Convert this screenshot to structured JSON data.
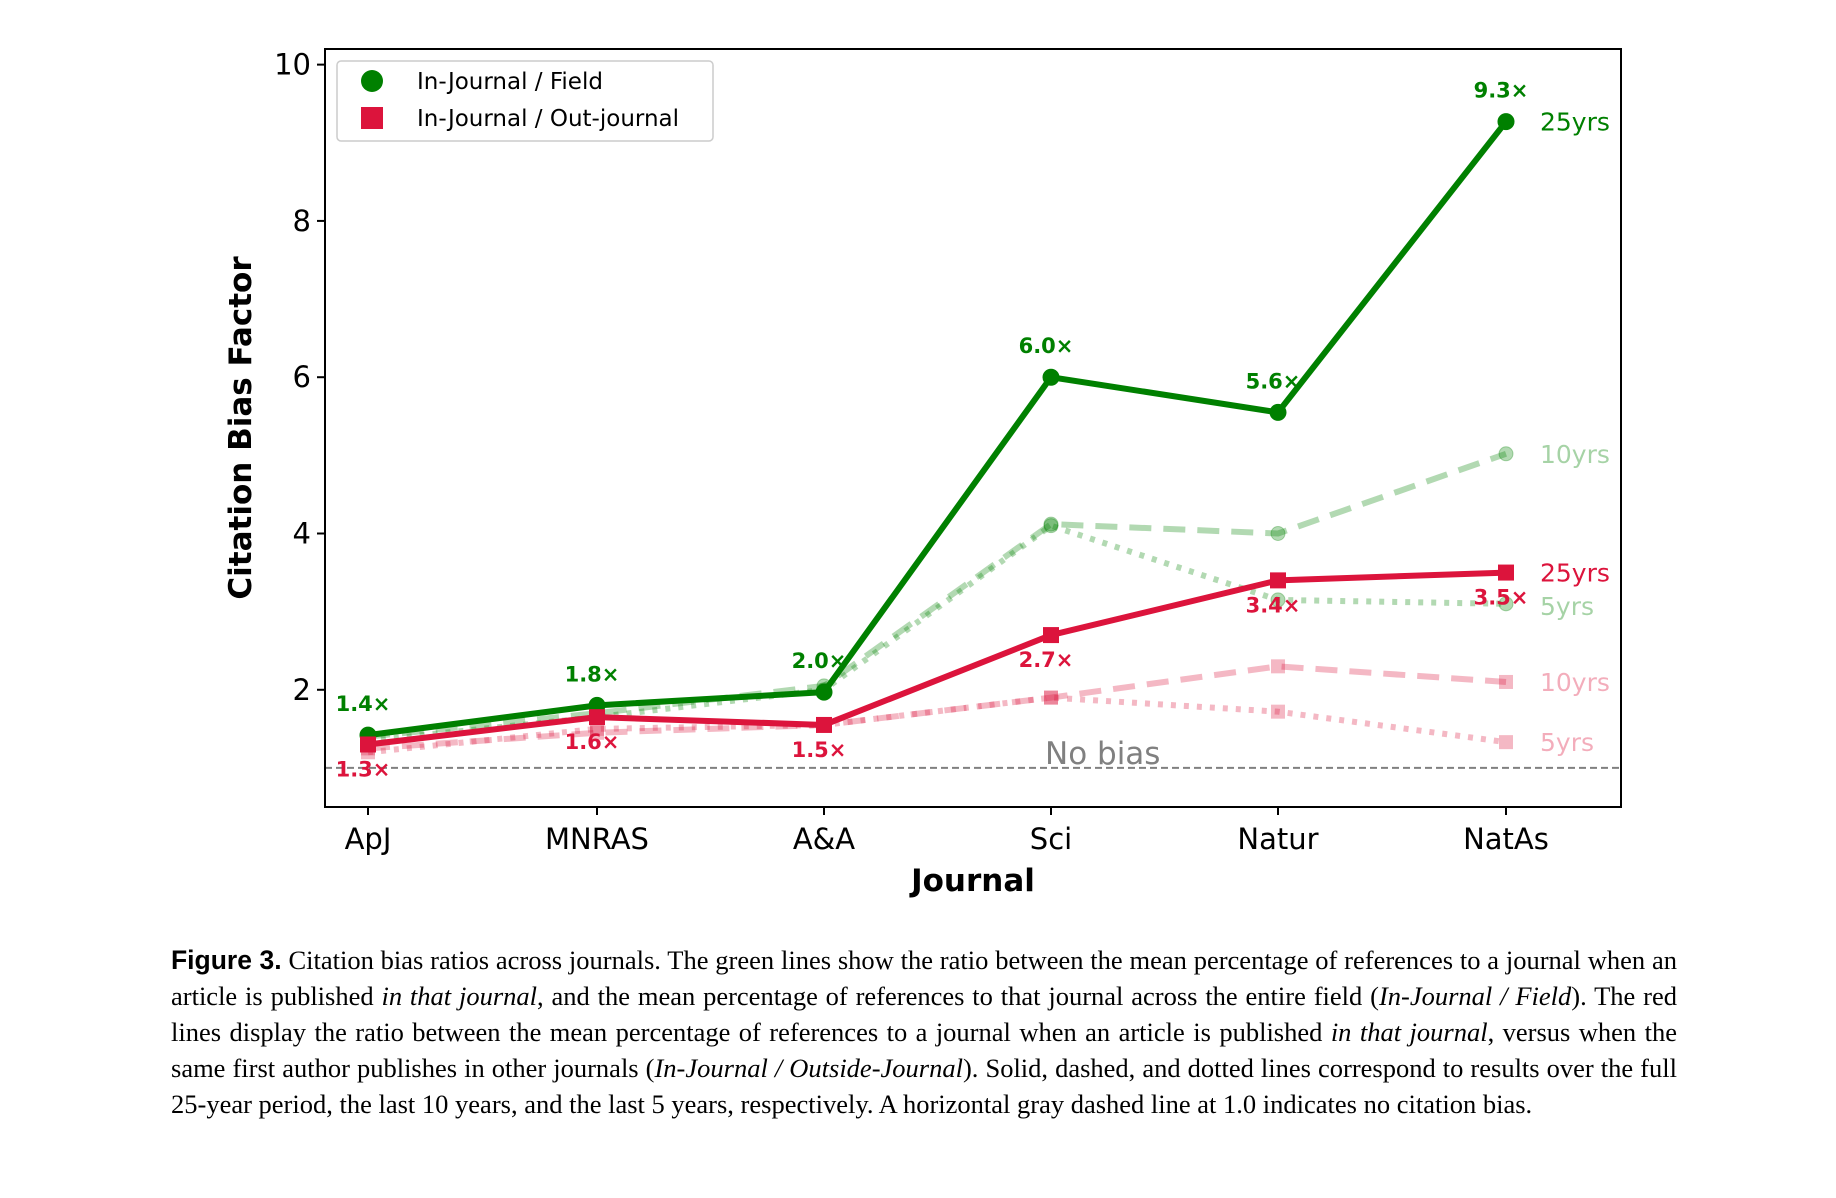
{
  "chart_data": {
    "type": "line",
    "categories": [
      "ApJ",
      "MNRAS",
      "A&A",
      "Sci",
      "Natur",
      "NatAs"
    ],
    "xlabel": "Journal",
    "ylabel": "Citation Bias Factor",
    "ylim": [
      0.5,
      10.2
    ],
    "yticks": [
      2,
      4,
      6,
      8,
      10
    ],
    "grid": false,
    "legend_placement": "top-left",
    "legend": [
      {
        "label": "In-Journal / Field",
        "marker": "circle",
        "color": "#008000"
      },
      {
        "label": "In-Journal / Out-journal",
        "marker": "square",
        "color": "#dc143c"
      }
    ],
    "reference_line": {
      "y": 1.0,
      "label": "No bias",
      "color": "#808080",
      "style": "dashed"
    },
    "series": [
      {
        "group": "In-Journal / Field",
        "period": "25yrs",
        "style": "solid",
        "marker": "circle",
        "color": "#008000",
        "opacity": 1,
        "values": [
          1.42,
          1.8,
          1.97,
          6.0,
          5.55,
          9.27
        ],
        "point_labels": [
          "1.4×",
          "1.8×",
          "2.0×",
          "6.0×",
          "5.6×",
          "9.3×"
        ]
      },
      {
        "group": "In-Journal / Field",
        "period": "10yrs",
        "style": "dashed",
        "marker": "circle",
        "color": "#008000",
        "opacity": 0.3,
        "values": [
          1.4,
          1.7,
          2.05,
          4.12,
          4.0,
          5.02
        ]
      },
      {
        "group": "In-Journal / Field",
        "period": "5yrs",
        "style": "dotted",
        "marker": "circle",
        "color": "#008000",
        "opacity": 0.3,
        "values": [
          1.35,
          1.65,
          2.0,
          4.1,
          3.15,
          3.1
        ]
      },
      {
        "group": "In-Journal / Out-journal",
        "period": "25yrs",
        "style": "solid",
        "marker": "square",
        "color": "#dc143c",
        "opacity": 1,
        "values": [
          1.3,
          1.65,
          1.55,
          2.7,
          3.4,
          3.5
        ],
        "point_labels": [
          "1.3×",
          "1.6×",
          "1.5×",
          "2.7×",
          "3.4×",
          "3.5×"
        ]
      },
      {
        "group": "In-Journal / Out-journal",
        "period": "10yrs",
        "style": "dashed",
        "marker": "square",
        "color": "#dc143c",
        "opacity": 0.3,
        "values": [
          1.25,
          1.45,
          1.55,
          1.9,
          2.3,
          2.1
        ]
      },
      {
        "group": "In-Journal / Out-journal",
        "period": "5yrs",
        "style": "dotted",
        "marker": "square",
        "color": "#dc143c",
        "opacity": 0.3,
        "values": [
          1.2,
          1.5,
          1.55,
          1.9,
          1.72,
          1.33
        ]
      }
    ]
  },
  "caption": {
    "lead": "Figure 3.",
    "segments": [
      {
        "text": " Citation bias ratios across journals. The green lines show the ratio between the mean percentage of references to a journal when an article is published ",
        "italic": false
      },
      {
        "text": "in that journal",
        "italic": true
      },
      {
        "text": ", and the mean percentage of references to that journal across the entire field (",
        "italic": false
      },
      {
        "text": "In-Journal / Field",
        "italic": true
      },
      {
        "text": "). The red lines display the ratio between the mean percentage of references to a journal when an article is published ",
        "italic": false
      },
      {
        "text": "in that journal",
        "italic": true
      },
      {
        "text": ", versus when the same first author publishes in other journals (",
        "italic": false
      },
      {
        "text": "In-Journal / Outside-Journal",
        "italic": true
      },
      {
        "text": "). Solid, dashed, and dotted lines correspond to results over the full 25-year period, the last 10 years, and the last 5 years, respectively. A horizontal gray dashed line at 1.0 indicates no citation bias.",
        "italic": false
      }
    ]
  }
}
